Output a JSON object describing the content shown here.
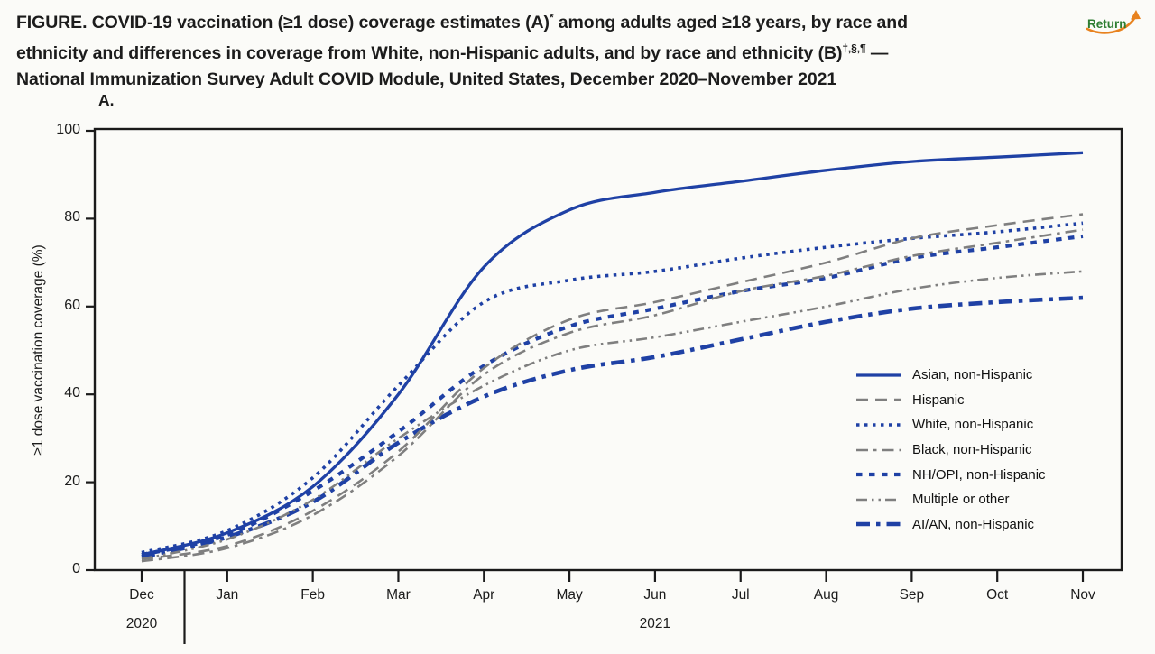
{
  "header": {
    "title": {
      "line1": "FIGURE. COVID-19 vaccination (≥1 dose) coverage estimates (A)",
      "line1_sup": "*",
      "line1b": " among adults aged ≥18 years, by race and",
      "line2": "ethnicity and differences in coverage from White, non-Hispanic adults, and by race and ethnicity (B)",
      "line2_sup": "†,§,¶",
      "line2b": " —",
      "line3": "National Immunization Survey Adult COVID Module, United States, December 2020–November 2021"
    },
    "return_label": "Return",
    "return_text_color": "#2e7d32",
    "return_arrow_color": "#e8821e"
  },
  "chart_data": {
    "type": "line",
    "panel_label": "A.",
    "ylabel": "≥1 dose vaccination coverage (%)",
    "xlabel": "",
    "x_categories": [
      "Dec",
      "Jan",
      "Feb",
      "Mar",
      "Apr",
      "May",
      "Jun",
      "Jul",
      "Aug",
      "Sep",
      "Oct",
      "Nov"
    ],
    "year_labels": [
      {
        "text": "2020",
        "month_index": 0
      },
      {
        "text": "2021",
        "month_index": 6
      }
    ],
    "y_ticks": [
      0,
      20,
      40,
      60,
      80,
      100
    ],
    "ylim": [
      0,
      100
    ],
    "grid": false,
    "legend_position": "inside-right",
    "axis_color": "#1a1a1a",
    "series": [
      {
        "name": "Asian, non-Hispanic",
        "color": "#1f41a5",
        "pattern": "solid",
        "values": [
          3.5,
          8.5,
          19,
          40,
          69,
          82,
          86,
          88.5,
          91,
          93,
          94,
          95
        ]
      },
      {
        "name": "Hispanic",
        "color": "#7f7f7f",
        "pattern": "long-dash",
        "values": [
          2.5,
          5.5,
          13.5,
          27,
          46,
          57,
          61,
          65.5,
          70,
          75.5,
          78.5,
          81
        ]
      },
      {
        "name": "White, non-Hispanic",
        "color": "#1f41a5",
        "pattern": "dotted",
        "values": [
          4,
          9,
          21,
          42,
          61,
          66,
          68,
          71,
          73.5,
          75.5,
          77,
          79
        ]
      },
      {
        "name": "Black, non-Hispanic",
        "color": "#7f7f7f",
        "pattern": "dash-dot",
        "values": [
          2,
          5,
          12.5,
          26,
          44.5,
          54,
          58,
          63.5,
          67,
          71.5,
          74.5,
          77.5
        ]
      },
      {
        "name": "NH/OPI, non-Hispanic",
        "color": "#1f41a5",
        "pattern": "square-dash",
        "values": [
          3.5,
          8,
          18,
          31.5,
          46.5,
          55.5,
          59.5,
          63.5,
          66.5,
          71,
          73.5,
          76
        ]
      },
      {
        "name": "Multiple or other",
        "color": "#7f7f7f",
        "pattern": "dash-dot-dot",
        "values": [
          2.5,
          7,
          16,
          30,
          42,
          50,
          53,
          56.5,
          60,
          64,
          66.5,
          68
        ]
      },
      {
        "name": "AI/AN, non-Hispanic",
        "color": "#1f41a5",
        "pattern": "long-dash-dot",
        "values": [
          3,
          7.5,
          15.5,
          29,
          39.5,
          45.5,
          48.5,
          52.5,
          56.5,
          59.5,
          61,
          62
        ]
      }
    ]
  }
}
